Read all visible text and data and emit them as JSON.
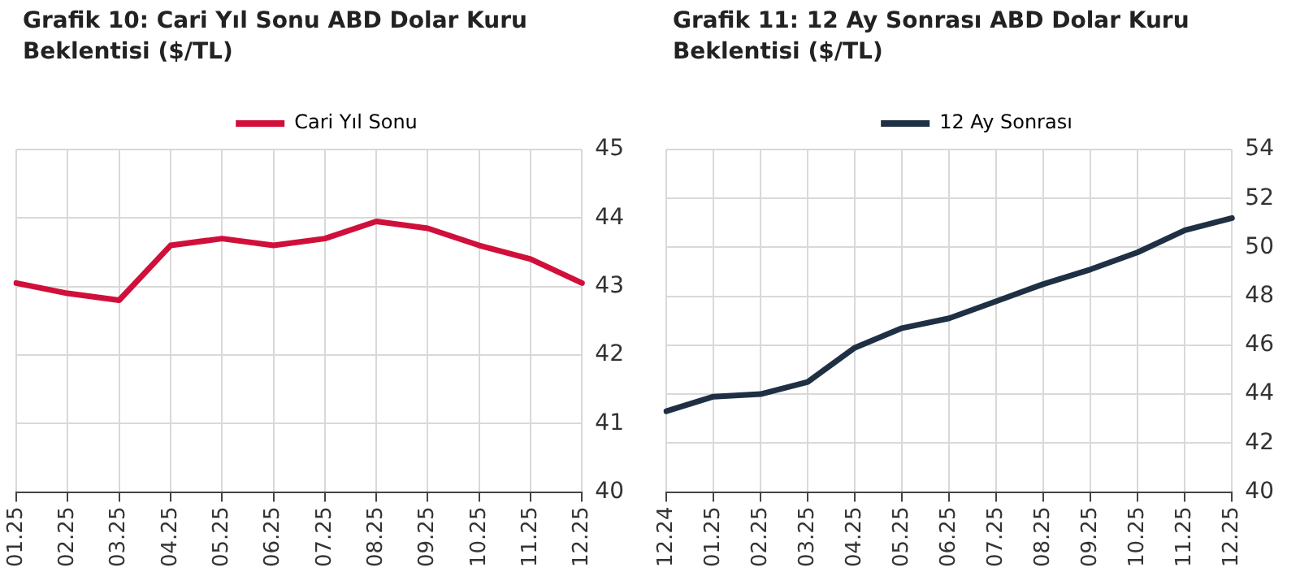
{
  "chart_data": [
    {
      "type": "line",
      "title": "Grafik 10: Cari Yıl Sonu ABD Dolar Kuru Beklentisi ($/TL)",
      "categories": [
        "01.25",
        "02.25",
        "03.25",
        "04.25",
        "05.25",
        "06.25",
        "07.25",
        "08.25",
        "09.25",
        "10.25",
        "11.25",
        "12.25"
      ],
      "series": [
        {
          "name": "Cari Yıl Sonu",
          "color": "#d0103a",
          "values": [
            43.05,
            42.9,
            42.8,
            43.6,
            43.7,
            43.6,
            43.7,
            43.95,
            43.85,
            43.6,
            43.4,
            43.05
          ]
        }
      ],
      "ylim": [
        40,
        45
      ],
      "yticks": [
        40,
        41,
        42,
        43,
        44,
        45
      ],
      "grid": true,
      "legend": "top",
      "marker": "none"
    },
    {
      "type": "line",
      "title": "Grafik 11: 12 Ay Sonrası ABD Dolar Kuru Beklentisi ($/TL)",
      "categories": [
        "12.24",
        "01.25",
        "02.25",
        "03.25",
        "04.25",
        "05.25",
        "06.25",
        "07.25",
        "08.25",
        "09.25",
        "10.25",
        "11.25",
        "12.25"
      ],
      "series": [
        {
          "name": "12 Ay Sonrası",
          "color": "#1f3044",
          "values": [
            43.3,
            43.9,
            44.0,
            44.5,
            45.9,
            46.7,
            47.1,
            47.8,
            48.5,
            49.1,
            49.8,
            50.7,
            51.2
          ]
        }
      ],
      "ylim": [
        40,
        54
      ],
      "yticks": [
        40,
        42,
        44,
        46,
        48,
        50,
        52,
        54
      ],
      "grid": true,
      "legend": "top",
      "marker": "none"
    }
  ]
}
